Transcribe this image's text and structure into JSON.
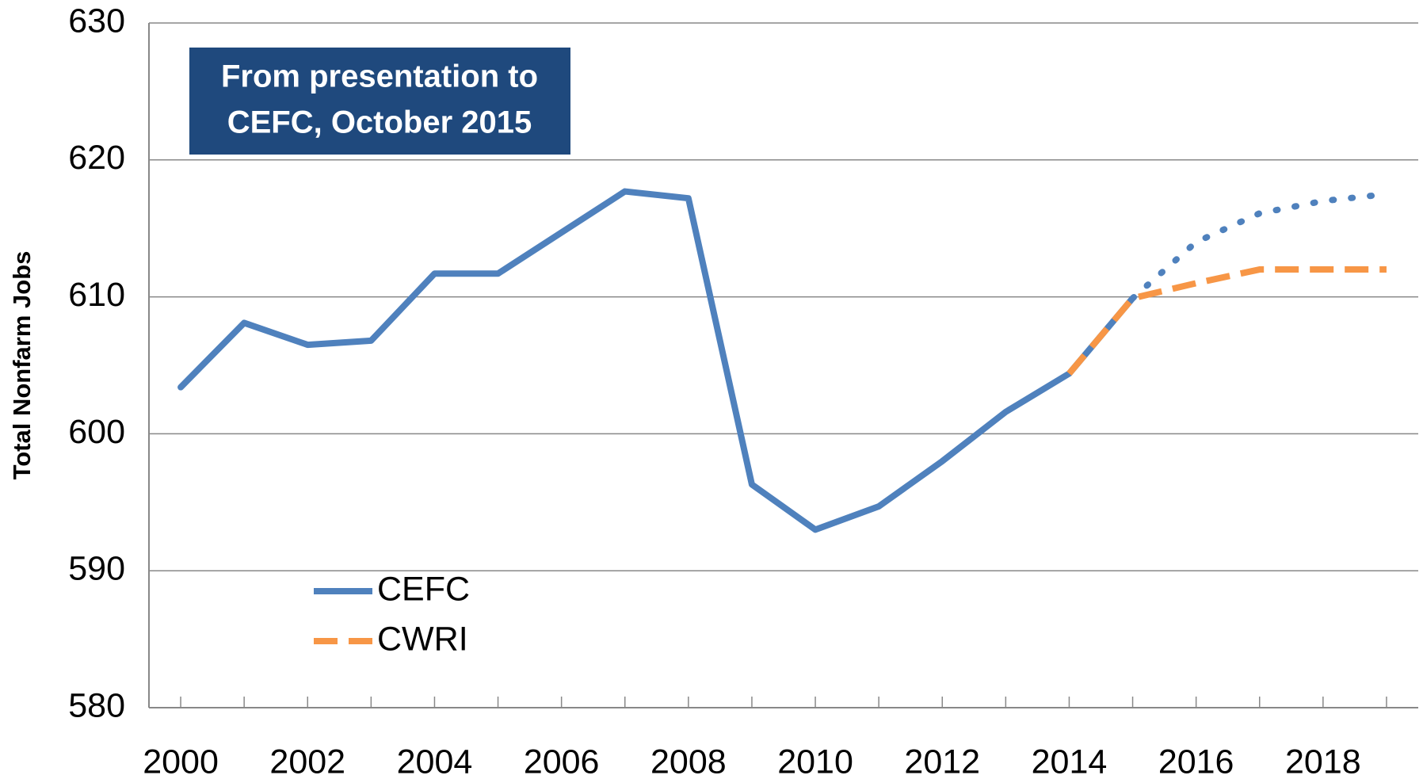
{
  "chart_data": {
    "type": "line",
    "y_label": "Total Nonfarm Jobs",
    "annotation": [
      "From presentation to",
      "CEFC, October 2015"
    ],
    "x": [
      2000,
      2001,
      2002,
      2003,
      2004,
      2005,
      2006,
      2007,
      2008,
      2009,
      2010,
      2011,
      2012,
      2013,
      2014,
      2015,
      2016,
      2017,
      2018,
      2019
    ],
    "xlim": [
      1999.5,
      2019.5
    ],
    "xticks": [
      2000,
      2002,
      2004,
      2006,
      2008,
      2010,
      2012,
      2014,
      2016,
      2018
    ],
    "ylim": [
      580,
      630
    ],
    "yticks": [
      580,
      590,
      600,
      610,
      620,
      630
    ],
    "grid": true,
    "legend": "lower-left",
    "series": [
      {
        "name": "CEFC",
        "color": "#4f81bd",
        "style": "solid",
        "dotted_from": 2015,
        "values": [
          603.4,
          608.1,
          606.5,
          606.8,
          611.7,
          611.7,
          614.7,
          617.7,
          617.2,
          596.3,
          593.0,
          594.7,
          598.0,
          601.6,
          604.4,
          609.9,
          614.0,
          616.1,
          617.0,
          617.5
        ]
      },
      {
        "name": "CWRI",
        "color": "#f79646",
        "style": "dashed",
        "values": [
          null,
          null,
          null,
          null,
          null,
          null,
          null,
          null,
          null,
          null,
          null,
          null,
          null,
          null,
          604.4,
          609.9,
          611.0,
          612.0,
          612.0,
          612.0
        ]
      }
    ]
  }
}
